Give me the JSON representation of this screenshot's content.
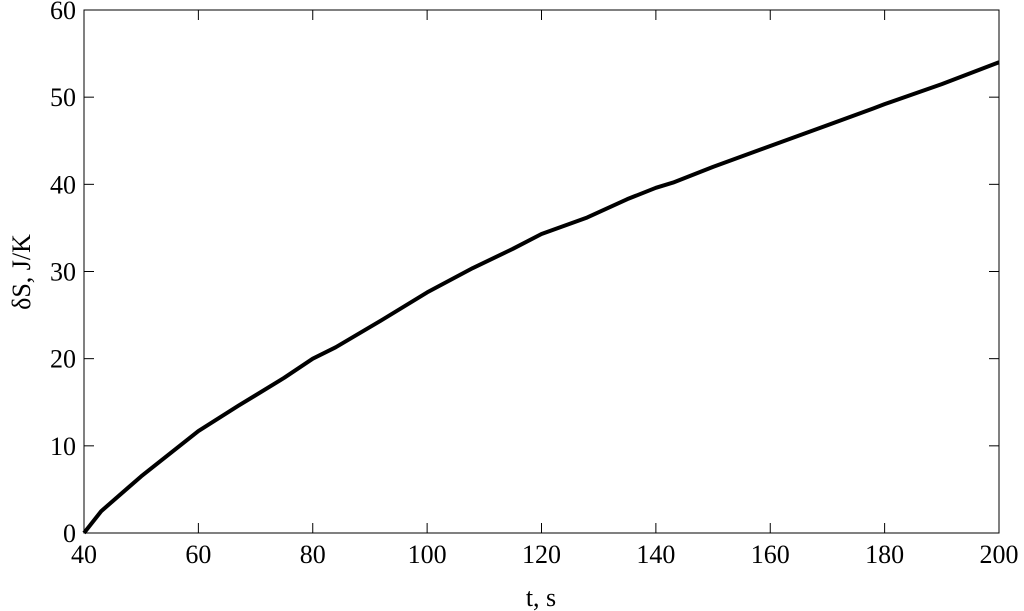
{
  "chart_data": {
    "type": "line",
    "xlabel": "t, s",
    "ylabel": "δS, J/K",
    "x": [
      40,
      43,
      50,
      60,
      67,
      75,
      80,
      84,
      92,
      100,
      108,
      115,
      120,
      128,
      135,
      140,
      143,
      150,
      160,
      168,
      178,
      180,
      190,
      200
    ],
    "series": [
      {
        "color": "#000000",
        "values": [
          0,
          2.5,
          6.5,
          11.7,
          14.6,
          17.8,
          20.0,
          21.3,
          24.4,
          27.6,
          30.4,
          32.6,
          34.3,
          36.2,
          38.3,
          39.6,
          40.2,
          42.0,
          44.4,
          46.3,
          48.7,
          49.2,
          51.5,
          54.0
        ]
      }
    ],
    "xlim": [
      40,
      200
    ],
    "xticks": [
      40,
      60,
      80,
      100,
      120,
      140,
      160,
      180,
      200
    ],
    "ylim": [
      0,
      60
    ],
    "yticks": [
      0,
      10,
      20,
      30,
      40,
      50,
      60
    ],
    "grid": false
  }
}
